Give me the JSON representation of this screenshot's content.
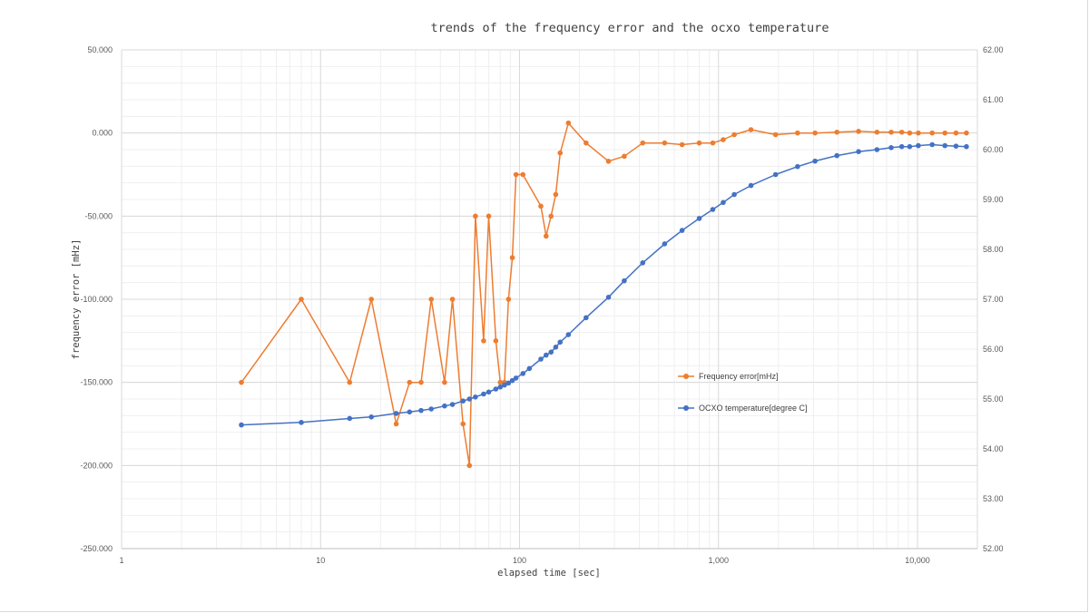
{
  "chart_data": {
    "type": "line",
    "title": "trends of the frequency error and the ocxo temperature",
    "xlabel": "elapsed time [sec]",
    "ylabel": "frequency error [mHz]",
    "x_scale": "log",
    "xlim": [
      1,
      20000
    ],
    "ylim": [
      -250,
      50
    ],
    "y2lim": [
      52,
      62
    ],
    "grid": true,
    "legend_position": "right-middle",
    "x_ticks": [
      "1",
      "10",
      "100",
      "1,000",
      "10,000"
    ],
    "y_ticks": [
      "50.000",
      "0.000",
      "-50.000",
      "-100.000",
      "-150.000",
      "-200.000",
      "-250.000"
    ],
    "y2_ticks": [
      "62.00",
      "61.00",
      "60.00",
      "59.00",
      "58.00",
      "57.00",
      "56.00",
      "55.00",
      "54.00",
      "53.00",
      "52.00"
    ],
    "series": [
      {
        "name": "Frequency error[mHz]",
        "axis": "left",
        "color": "#ED7D31",
        "x": [
          4,
          8,
          14,
          18,
          24,
          28,
          32,
          36,
          42,
          46,
          52,
          56,
          60,
          66,
          70,
          76,
          80,
          84,
          88,
          92,
          96,
          104,
          128,
          136,
          144,
          152,
          160,
          176,
          216,
          280,
          336,
          416,
          536,
          656,
          800,
          936,
          1056,
          1200,
          1456,
          1936,
          2496,
          3056,
          3936,
          5056,
          6256,
          7376,
          8336,
          9136,
          10096,
          11856,
          13736,
          15616,
          17616
        ],
        "y": [
          -150,
          -100,
          -150,
          -100,
          -175,
          -150,
          -150,
          -100,
          -150,
          -100,
          -175,
          -200,
          -50,
          -125,
          -50,
          -125,
          -150,
          -150,
          -100,
          -75,
          -25,
          -25,
          -44,
          -62,
          -50,
          -37,
          -12,
          6,
          -6,
          -17,
          -14,
          -6,
          -6,
          -7,
          -6,
          -6,
          -4,
          -1,
          2,
          -1,
          0,
          0,
          0.5,
          1,
          0.5,
          0.5,
          0.5,
          0,
          0,
          0,
          0,
          0,
          0
        ]
      },
      {
        "name": "OCXO temperature[degree C]",
        "axis": "right",
        "color": "#4472C4",
        "x": [
          4,
          8,
          14,
          18,
          24,
          28,
          32,
          36,
          42,
          46,
          52,
          56,
          60,
          66,
          70,
          76,
          80,
          84,
          88,
          92,
          96,
          104,
          112,
          128,
          136,
          144,
          152,
          160,
          176,
          216,
          280,
          336,
          416,
          536,
          656,
          800,
          936,
          1056,
          1200,
          1456,
          1936,
          2496,
          3056,
          3936,
          5056,
          6256,
          7376,
          8336,
          9136,
          10096,
          11856,
          13736,
          15616,
          17616
        ],
        "y": [
          54.48,
          54.53,
          54.61,
          54.64,
          54.71,
          54.74,
          54.77,
          54.8,
          54.86,
          54.89,
          54.96,
          55.0,
          55.04,
          55.1,
          55.14,
          55.2,
          55.24,
          55.28,
          55.32,
          55.37,
          55.42,
          55.51,
          55.61,
          55.8,
          55.88,
          55.94,
          56.04,
          56.14,
          56.29,
          56.63,
          57.04,
          57.37,
          57.73,
          58.11,
          58.38,
          58.62,
          58.8,
          58.94,
          59.1,
          59.28,
          59.5,
          59.66,
          59.77,
          59.88,
          59.96,
          60.0,
          60.04,
          60.06,
          60.06,
          60.08,
          60.1,
          60.08,
          60.07,
          60.06
        ]
      }
    ]
  }
}
